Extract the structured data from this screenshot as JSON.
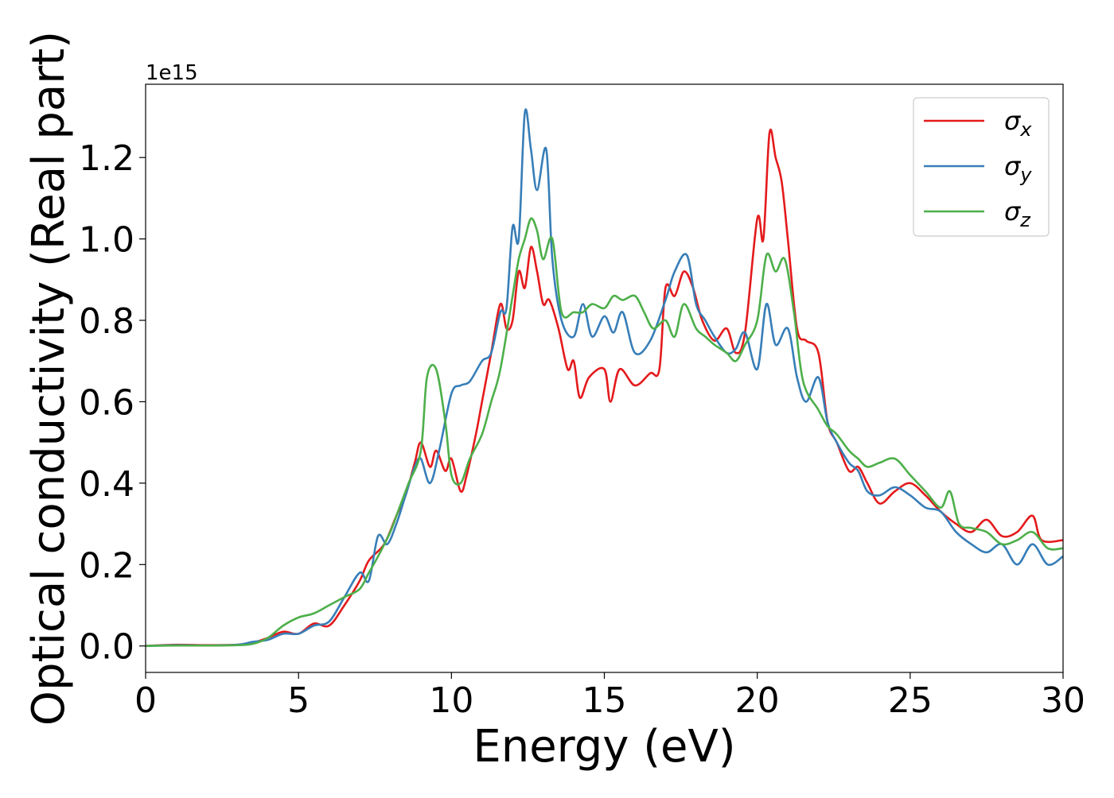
{
  "chart_data": {
    "type": "line",
    "title": "",
    "xlabel": "Energy (eV)",
    "ylabel": "Optical conductivity (Real part)",
    "y_offset_label": "1e15",
    "xlim": [
      0,
      30
    ],
    "ylim": [
      -0.065,
      1.38
    ],
    "xticks": [
      0,
      5,
      10,
      15,
      20,
      25,
      30
    ],
    "xtick_labels": [
      "0",
      "5",
      "10",
      "15",
      "20",
      "25",
      "30"
    ],
    "yticks": [
      0.0,
      0.2,
      0.4,
      0.6,
      0.8,
      1.0,
      1.2
    ],
    "ytick_labels": [
      "0.0",
      "0.2",
      "0.4",
      "0.6",
      "0.8",
      "1.0",
      "1.2"
    ],
    "grid": false,
    "legend_position": "top-right",
    "series": [
      {
        "name": "σx",
        "legend_base": "σ",
        "legend_sub": "x",
        "color": "#e41a1c",
        "points": [
          [
            0,
            0
          ],
          [
            1,
            0.003
          ],
          [
            2,
            0.002
          ],
          [
            3,
            0.003
          ],
          [
            3.5,
            0.008
          ],
          [
            4,
            0.02
          ],
          [
            4.5,
            0.035
          ],
          [
            5,
            0.03
          ],
          [
            5.5,
            0.055
          ],
          [
            6,
            0.05
          ],
          [
            6.5,
            0.1
          ],
          [
            7,
            0.16
          ],
          [
            7.3,
            0.21
          ],
          [
            7.8,
            0.25
          ],
          [
            8.2,
            0.32
          ],
          [
            8.5,
            0.37
          ],
          [
            8.8,
            0.45
          ],
          [
            9,
            0.5
          ],
          [
            9.3,
            0.44
          ],
          [
            9.5,
            0.48
          ],
          [
            9.8,
            0.43
          ],
          [
            10,
            0.46
          ],
          [
            10.3,
            0.38
          ],
          [
            10.5,
            0.42
          ],
          [
            10.8,
            0.52
          ],
          [
            11,
            0.6
          ],
          [
            11.3,
            0.72
          ],
          [
            11.6,
            0.84
          ],
          [
            11.8,
            0.78
          ],
          [
            12,
            0.8
          ],
          [
            12.2,
            0.92
          ],
          [
            12.4,
            0.88
          ],
          [
            12.6,
            0.98
          ],
          [
            12.8,
            0.92
          ],
          [
            13,
            0.84
          ],
          [
            13.2,
            0.85
          ],
          [
            13.5,
            0.78
          ],
          [
            13.8,
            0.68
          ],
          [
            14,
            0.7
          ],
          [
            14.2,
            0.61
          ],
          [
            14.5,
            0.66
          ],
          [
            15,
            0.68
          ],
          [
            15.2,
            0.6
          ],
          [
            15.5,
            0.68
          ],
          [
            16,
            0.64
          ],
          [
            16.5,
            0.67
          ],
          [
            16.8,
            0.68
          ],
          [
            17,
            0.88
          ],
          [
            17.3,
            0.86
          ],
          [
            17.6,
            0.92
          ],
          [
            17.9,
            0.88
          ],
          [
            18.2,
            0.8
          ],
          [
            18.6,
            0.75
          ],
          [
            19,
            0.78
          ],
          [
            19.3,
            0.72
          ],
          [
            19.6,
            0.77
          ],
          [
            20,
            1.05
          ],
          [
            20.2,
            1.0
          ],
          [
            20.4,
            1.26
          ],
          [
            20.6,
            1.2
          ],
          [
            20.8,
            1.14
          ],
          [
            21,
            1.0
          ],
          [
            21.3,
            0.78
          ],
          [
            21.6,
            0.75
          ],
          [
            22,
            0.72
          ],
          [
            22.3,
            0.55
          ],
          [
            22.6,
            0.5
          ],
          [
            23,
            0.43
          ],
          [
            23.3,
            0.44
          ],
          [
            23.6,
            0.4
          ],
          [
            24,
            0.35
          ],
          [
            24.5,
            0.38
          ],
          [
            25,
            0.4
          ],
          [
            25.5,
            0.37
          ],
          [
            26,
            0.33
          ],
          [
            26.5,
            0.3
          ],
          [
            27,
            0.28
          ],
          [
            27.5,
            0.31
          ],
          [
            28,
            0.27
          ],
          [
            28.5,
            0.28
          ],
          [
            29,
            0.32
          ],
          [
            29.3,
            0.26
          ],
          [
            30,
            0.26
          ]
        ]
      },
      {
        "name": "σy",
        "legend_base": "σ",
        "legend_sub": "y",
        "color": "#377eb8",
        "points": [
          [
            0,
            0
          ],
          [
            1,
            0.002
          ],
          [
            2,
            0.001
          ],
          [
            3,
            0.003
          ],
          [
            3.5,
            0.01
          ],
          [
            4,
            0.015
          ],
          [
            4.5,
            0.03
          ],
          [
            5,
            0.03
          ],
          [
            5.5,
            0.05
          ],
          [
            6,
            0.06
          ],
          [
            6.5,
            0.12
          ],
          [
            7,
            0.18
          ],
          [
            7.3,
            0.16
          ],
          [
            7.6,
            0.27
          ],
          [
            7.9,
            0.25
          ],
          [
            8.2,
            0.3
          ],
          [
            8.5,
            0.37
          ],
          [
            8.8,
            0.44
          ],
          [
            9,
            0.46
          ],
          [
            9.3,
            0.4
          ],
          [
            9.6,
            0.48
          ],
          [
            10,
            0.62
          ],
          [
            10.3,
            0.64
          ],
          [
            10.6,
            0.65
          ],
          [
            11,
            0.7
          ],
          [
            11.3,
            0.72
          ],
          [
            11.6,
            0.82
          ],
          [
            11.8,
            0.83
          ],
          [
            12,
            1.03
          ],
          [
            12.2,
            1.0
          ],
          [
            12.4,
            1.31
          ],
          [
            12.6,
            1.22
          ],
          [
            12.8,
            1.12
          ],
          [
            13.1,
            1.22
          ],
          [
            13.3,
            0.95
          ],
          [
            13.6,
            0.8
          ],
          [
            14,
            0.76
          ],
          [
            14.3,
            0.84
          ],
          [
            14.6,
            0.76
          ],
          [
            15,
            0.81
          ],
          [
            15.3,
            0.77
          ],
          [
            15.6,
            0.82
          ],
          [
            16,
            0.72
          ],
          [
            16.5,
            0.75
          ],
          [
            17,
            0.85
          ],
          [
            17.3,
            0.92
          ],
          [
            17.7,
            0.96
          ],
          [
            18,
            0.84
          ],
          [
            18.3,
            0.8
          ],
          [
            18.6,
            0.76
          ],
          [
            19,
            0.72
          ],
          [
            19.3,
            0.73
          ],
          [
            19.6,
            0.77
          ],
          [
            20,
            0.68
          ],
          [
            20.3,
            0.84
          ],
          [
            20.6,
            0.74
          ],
          [
            21,
            0.78
          ],
          [
            21.3,
            0.66
          ],
          [
            21.6,
            0.6
          ],
          [
            22,
            0.66
          ],
          [
            22.3,
            0.55
          ],
          [
            22.6,
            0.5
          ],
          [
            23,
            0.45
          ],
          [
            23.3,
            0.43
          ],
          [
            23.6,
            0.38
          ],
          [
            24,
            0.37
          ],
          [
            24.5,
            0.39
          ],
          [
            25,
            0.37
          ],
          [
            25.5,
            0.34
          ],
          [
            26,
            0.33
          ],
          [
            26.5,
            0.28
          ],
          [
            27,
            0.25
          ],
          [
            27.5,
            0.23
          ],
          [
            28,
            0.25
          ],
          [
            28.5,
            0.2
          ],
          [
            29,
            0.25
          ],
          [
            29.5,
            0.2
          ],
          [
            30,
            0.22
          ]
        ]
      },
      {
        "name": "σz",
        "legend_base": "σ",
        "legend_sub": "z",
        "color": "#4daf4a",
        "points": [
          [
            0,
            0
          ],
          [
            1,
            0.001
          ],
          [
            2,
            0.001
          ],
          [
            3,
            0.002
          ],
          [
            3.5,
            0.005
          ],
          [
            4,
            0.02
          ],
          [
            4.5,
            0.05
          ],
          [
            5,
            0.07
          ],
          [
            5.5,
            0.08
          ],
          [
            6,
            0.1
          ],
          [
            6.5,
            0.12
          ],
          [
            7,
            0.14
          ],
          [
            7.3,
            0.18
          ],
          [
            7.6,
            0.22
          ],
          [
            8,
            0.28
          ],
          [
            8.3,
            0.34
          ],
          [
            8.6,
            0.4
          ],
          [
            9,
            0.48
          ],
          [
            9.2,
            0.66
          ],
          [
            9.5,
            0.68
          ],
          [
            9.8,
            0.55
          ],
          [
            10,
            0.42
          ],
          [
            10.3,
            0.4
          ],
          [
            10.6,
            0.46
          ],
          [
            11,
            0.52
          ],
          [
            11.3,
            0.6
          ],
          [
            11.6,
            0.68
          ],
          [
            12,
            0.86
          ],
          [
            12.2,
            0.95
          ],
          [
            12.4,
            1.0
          ],
          [
            12.6,
            1.05
          ],
          [
            12.8,
            1.02
          ],
          [
            13,
            0.95
          ],
          [
            13.3,
            1.0
          ],
          [
            13.6,
            0.82
          ],
          [
            14,
            0.82
          ],
          [
            14.3,
            0.82
          ],
          [
            14.6,
            0.84
          ],
          [
            15,
            0.83
          ],
          [
            15.3,
            0.86
          ],
          [
            15.6,
            0.85
          ],
          [
            16,
            0.86
          ],
          [
            16.3,
            0.82
          ],
          [
            16.6,
            0.78
          ],
          [
            17,
            0.8
          ],
          [
            17.3,
            0.76
          ],
          [
            17.6,
            0.84
          ],
          [
            18,
            0.78
          ],
          [
            18.3,
            0.76
          ],
          [
            18.6,
            0.74
          ],
          [
            19,
            0.72
          ],
          [
            19.3,
            0.7
          ],
          [
            19.6,
            0.74
          ],
          [
            20,
            0.8
          ],
          [
            20.3,
            0.96
          ],
          [
            20.6,
            0.92
          ],
          [
            20.9,
            0.95
          ],
          [
            21.2,
            0.82
          ],
          [
            21.5,
            0.65
          ],
          [
            22,
            0.58
          ],
          [
            22.3,
            0.54
          ],
          [
            22.6,
            0.52
          ],
          [
            23,
            0.48
          ],
          [
            23.3,
            0.46
          ],
          [
            23.6,
            0.44
          ],
          [
            24,
            0.45
          ],
          [
            24.5,
            0.46
          ],
          [
            25,
            0.42
          ],
          [
            25.5,
            0.38
          ],
          [
            26,
            0.34
          ],
          [
            26.3,
            0.38
          ],
          [
            26.6,
            0.3
          ],
          [
            27,
            0.29
          ],
          [
            27.5,
            0.28
          ],
          [
            28,
            0.25
          ],
          [
            28.5,
            0.26
          ],
          [
            29,
            0.28
          ],
          [
            29.5,
            0.24
          ],
          [
            30,
            0.24
          ]
        ]
      }
    ]
  }
}
